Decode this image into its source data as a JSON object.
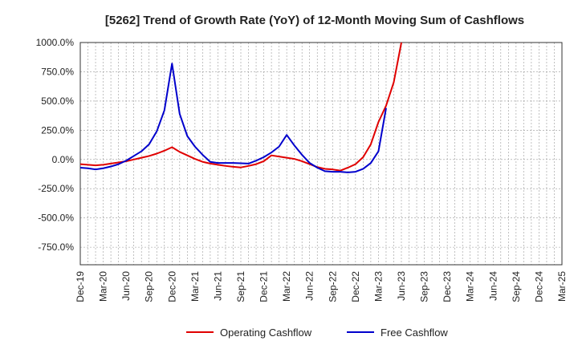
{
  "chart_data": {
    "type": "line",
    "title": "[5262]  Trend of Growth Rate (YoY) of 12-Month Moving Sum of Cashflows",
    "xlabel": "",
    "ylabel": "",
    "ylim": [
      -900,
      1000
    ],
    "y_ticks": [
      1000,
      750,
      500,
      250,
      0,
      -250,
      -500,
      -750
    ],
    "y_tick_labels": [
      "1000.0%",
      "750.0%",
      "500.0%",
      "250.0%",
      "0.0%",
      "-250.0%",
      "-500.0%",
      "-750.0%"
    ],
    "x_tick_labels": [
      "Dec-19",
      "Mar-20",
      "Jun-20",
      "Sep-20",
      "Dec-20",
      "Mar-21",
      "Jun-21",
      "Sep-21",
      "Dec-21",
      "Mar-22",
      "Jun-22",
      "Sep-22",
      "Dec-22",
      "Mar-23",
      "Jun-23",
      "Sep-23",
      "Dec-23",
      "Mar-24",
      "Jun-24",
      "Sep-24",
      "Dec-24",
      "Mar-25"
    ],
    "grid": true,
    "legend": "bottom",
    "series": [
      {
        "name": "Operating Cashflow",
        "color": "#e00000",
        "values": [
          -40,
          -45,
          -50,
          -45,
          -35,
          -25,
          -15,
          0,
          15,
          30,
          50,
          75,
          105,
          65,
          35,
          5,
          -20,
          -35,
          -45,
          -55,
          -62,
          -68,
          -55,
          -40,
          -15,
          35,
          25,
          15,
          5,
          -15,
          -40,
          -65,
          -80,
          -85,
          -95,
          -70,
          -40,
          20,
          130,
          320,
          460,
          660,
          1000
        ]
      },
      {
        "name": "Free Cashflow",
        "color": "#0000cc",
        "values": [
          -70,
          -75,
          -85,
          -75,
          -60,
          -40,
          -10,
          30,
          70,
          130,
          240,
          420,
          820,
          390,
          200,
          110,
          40,
          -20,
          -30,
          -30,
          -30,
          -32,
          -35,
          -10,
          20,
          60,
          110,
          210,
          120,
          40,
          -30,
          -70,
          -100,
          -105,
          -105,
          -110,
          -105,
          -80,
          -30,
          70,
          440
        ]
      }
    ]
  }
}
